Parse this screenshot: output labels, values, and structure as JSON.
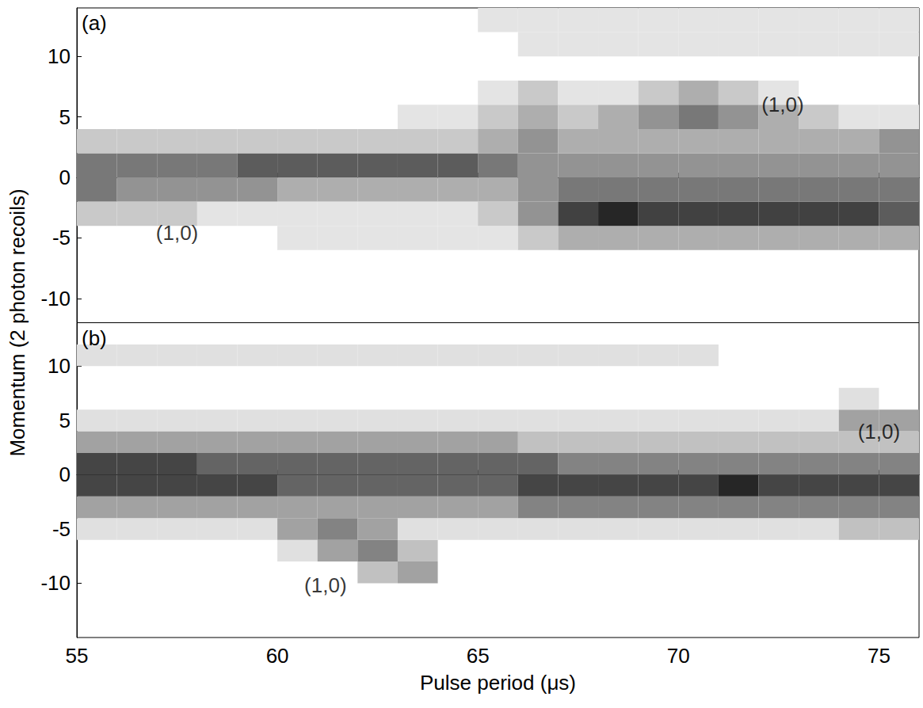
{
  "chart_data": [
    {
      "type": "heatmap",
      "panel_label": "(a)",
      "color": "#000000",
      "ylabel": "Momentum (2 photon recoils)",
      "tick_labels": "y",
      "xlim": [
        55,
        76
      ],
      "ylim": [
        -12,
        14
      ],
      "xticks": [
        55,
        60,
        65,
        70,
        75
      ],
      "yticks": [
        -10,
        -5,
        0,
        5,
        10
      ],
      "x_bins": [
        55,
        56,
        57,
        58,
        59,
        60,
        61,
        62,
        63,
        64,
        65,
        66,
        67,
        68,
        69,
        70,
        71,
        72,
        73,
        74,
        75,
        76
      ],
      "y_bins": [
        -12,
        -10,
        -8,
        -6,
        -4,
        -2,
        0,
        2,
        4,
        6,
        8,
        10,
        12,
        14
      ],
      "cells": [
        [
          0,
          0,
          0,
          0,
          0,
          0,
          0,
          0,
          0,
          0,
          0,
          0,
          0,
          0,
          0,
          0,
          0,
          0,
          0,
          0,
          0
        ],
        [
          0,
          0,
          0,
          0,
          0,
          0,
          0,
          0,
          0,
          0,
          0,
          0,
          0,
          0,
          0,
          0,
          0,
          0,
          0,
          0,
          0
        ],
        [
          0,
          0,
          0,
          0,
          0,
          0,
          0,
          0,
          0,
          0,
          0,
          0,
          0,
          0,
          0,
          0,
          0,
          0,
          0,
          0,
          0
        ],
        [
          0,
          0,
          0,
          0,
          0,
          1,
          1,
          1,
          1,
          1,
          1,
          2,
          3,
          3,
          3,
          3,
          3,
          3,
          3,
          3,
          3
        ],
        [
          2,
          2,
          2,
          1,
          1,
          1,
          1,
          1,
          1,
          1,
          2,
          4,
          7,
          8,
          7,
          7,
          7,
          7,
          7,
          7,
          6
        ],
        [
          5,
          4,
          4,
          4,
          4,
          3,
          3,
          3,
          3,
          3,
          3,
          4,
          5,
          5,
          5,
          5,
          5,
          5,
          5,
          5,
          5
        ],
        [
          5,
          5,
          5,
          5,
          6,
          6,
          6,
          6,
          6,
          6,
          5,
          4,
          4,
          4,
          4,
          4,
          4,
          4,
          4,
          4,
          4
        ],
        [
          2,
          2,
          2,
          2,
          2,
          2,
          2,
          2,
          2,
          2,
          3,
          4,
          3,
          3,
          3,
          3,
          3,
          3,
          3,
          3,
          4
        ],
        [
          0,
          0,
          0,
          0,
          0,
          0,
          0,
          0,
          1,
          1,
          2,
          3,
          2,
          3,
          4,
          5,
          4,
          3,
          2,
          1,
          1
        ],
        [
          0,
          0,
          0,
          0,
          0,
          0,
          0,
          0,
          0,
          0,
          1,
          2,
          1,
          1,
          2,
          3,
          2,
          1,
          0,
          0,
          0
        ],
        [
          0,
          0,
          0,
          0,
          0,
          0,
          0,
          0,
          0,
          0,
          0,
          0,
          0,
          0,
          0,
          0,
          0,
          0,
          0,
          0,
          0
        ],
        [
          0,
          0,
          0,
          0,
          0,
          0,
          0,
          0,
          0,
          0,
          0,
          1,
          1,
          1,
          1,
          1,
          1,
          1,
          1,
          1,
          1
        ],
        [
          0,
          0,
          0,
          0,
          0,
          0,
          0,
          0,
          0,
          0,
          1,
          1,
          1,
          1,
          1,
          1,
          1,
          1,
          1,
          1,
          1
        ]
      ],
      "annotations": [
        {
          "text": "(1,0)",
          "x": 57.5,
          "y": -4.6
        },
        {
          "text": "(1,0)",
          "x": 72.6,
          "y": 6.0
        }
      ]
    },
    {
      "type": "heatmap",
      "panel_label": "(b)",
      "color": "#000000",
      "xlabel": "Pulse period (μs)",
      "tick_labels": true,
      "xlim": [
        55,
        76
      ],
      "ylim": [
        -15,
        14
      ],
      "xticks": [
        55,
        60,
        65,
        70,
        75
      ],
      "yticks": [
        -10,
        -5,
        0,
        5,
        10
      ],
      "x_bins": [
        55,
        56,
        57,
        58,
        59,
        60,
        61,
        62,
        63,
        64,
        65,
        66,
        67,
        68,
        69,
        70,
        71,
        72,
        73,
        74,
        75,
        76
      ],
      "y_bins": [
        -14,
        -12,
        -10,
        -8,
        -6,
        -4,
        -2,
        0,
        2,
        4,
        6,
        8,
        10,
        12,
        14
      ],
      "cells": [
        [
          0,
          0,
          0,
          0,
          0,
          0,
          0,
          0,
          0,
          0,
          0,
          0,
          0,
          0,
          0,
          0,
          0,
          0,
          0,
          0,
          0
        ],
        [
          0,
          0,
          0,
          0,
          0,
          0,
          0,
          0,
          0,
          0,
          0,
          0,
          0,
          0,
          0,
          0,
          0,
          0,
          0,
          0,
          0
        ],
        [
          0,
          0,
          0,
          0,
          0,
          0,
          0,
          2,
          3,
          0,
          0,
          0,
          0,
          0,
          0,
          0,
          0,
          0,
          0,
          0,
          0
        ],
        [
          0,
          0,
          0,
          0,
          0,
          1,
          3,
          4,
          2,
          0,
          0,
          0,
          0,
          0,
          0,
          0,
          0,
          0,
          0,
          0,
          0
        ],
        [
          1,
          1,
          1,
          1,
          1,
          3,
          4,
          3,
          1,
          1,
          1,
          1,
          1,
          1,
          1,
          1,
          1,
          1,
          1,
          2,
          2
        ],
        [
          3,
          3,
          3,
          3,
          3,
          3,
          3,
          3,
          3,
          3,
          3,
          4,
          4,
          4,
          4,
          4,
          4,
          4,
          4,
          4,
          4
        ],
        [
          6,
          6,
          6,
          6,
          6,
          5,
          5,
          5,
          5,
          5,
          5,
          6,
          6,
          6,
          6,
          6,
          7,
          6,
          6,
          6,
          6
        ],
        [
          6,
          6,
          6,
          5,
          5,
          5,
          5,
          5,
          5,
          5,
          5,
          5,
          4,
          4,
          4,
          4,
          4,
          4,
          4,
          4,
          4
        ],
        [
          3,
          3,
          3,
          3,
          3,
          3,
          3,
          3,
          3,
          3,
          3,
          2,
          2,
          2,
          2,
          2,
          2,
          2,
          2,
          2,
          2
        ],
        [
          1,
          1,
          1,
          1,
          1,
          1,
          1,
          1,
          1,
          1,
          1,
          1,
          1,
          1,
          1,
          1,
          1,
          1,
          1,
          3,
          3
        ],
        [
          0,
          0,
          0,
          0,
          0,
          0,
          0,
          0,
          0,
          0,
          0,
          0,
          0,
          0,
          0,
          0,
          0,
          0,
          0,
          1,
          0
        ],
        [
          0,
          0,
          0,
          0,
          0,
          0,
          0,
          0,
          0,
          0,
          0,
          0,
          0,
          0,
          0,
          0,
          0,
          0,
          0,
          0,
          0
        ],
        [
          1,
          1,
          1,
          1,
          1,
          1,
          1,
          1,
          1,
          1,
          1,
          1,
          1,
          1,
          1,
          1,
          0,
          0,
          0,
          0,
          0
        ],
        [
          0,
          0,
          0,
          0,
          0,
          0,
          0,
          0,
          0,
          0,
          0,
          0,
          0,
          0,
          0,
          0,
          0,
          0,
          0,
          0,
          0
        ]
      ],
      "annotations": [
        {
          "text": "(1,0)",
          "x": 61.2,
          "y": -10.2
        },
        {
          "text": "(1,0)",
          "x": 75.0,
          "y": 4.0
        }
      ]
    }
  ]
}
